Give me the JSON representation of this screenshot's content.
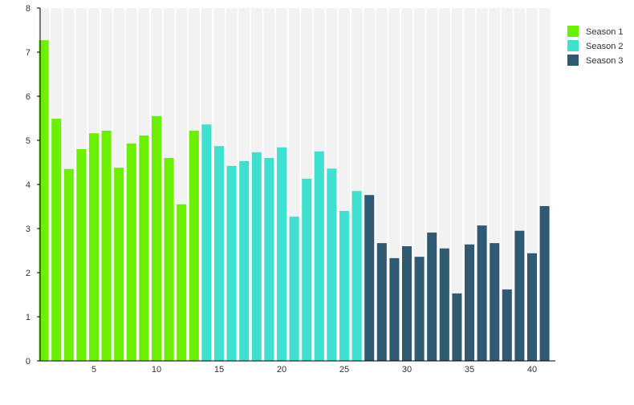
{
  "chart_data": {
    "type": "bar",
    "title": "",
    "xlabel": "",
    "ylabel": "",
    "ylim": [
      0,
      8
    ],
    "yticks": [
      "0",
      "1",
      "2",
      "3",
      "4",
      "5",
      "6",
      "7",
      "8"
    ],
    "xticks": [
      "5",
      "10",
      "15",
      "20",
      "25",
      "30",
      "35",
      "40"
    ],
    "grid": false,
    "legend_position": "top-right",
    "series": [
      {
        "name": "Season 1",
        "color": "#6af000",
        "x": [
          1,
          2,
          3,
          4,
          5,
          6,
          7,
          8,
          9,
          10,
          11,
          12,
          13
        ],
        "values": [
          7.27,
          5.49,
          4.35,
          4.8,
          5.16,
          5.22,
          4.38,
          4.93,
          5.11,
          5.55,
          4.6,
          3.55,
          5.22
        ]
      },
      {
        "name": "Season 2",
        "color": "#40e0d0",
        "x": [
          14,
          15,
          16,
          17,
          18,
          19,
          20,
          21,
          22,
          23,
          24,
          25,
          26
        ],
        "values": [
          5.36,
          4.87,
          4.42,
          4.53,
          4.73,
          4.6,
          4.84,
          3.27,
          4.13,
          4.75,
          4.36,
          3.4,
          3.85
        ]
      },
      {
        "name": "Season 3",
        "color": "#2f5a72",
        "x": [
          27,
          28,
          29,
          30,
          31,
          32,
          33,
          34,
          35,
          36,
          37,
          38,
          39,
          40,
          41
        ],
        "values": [
          3.76,
          2.67,
          2.33,
          2.6,
          2.36,
          2.91,
          2.55,
          1.53,
          2.64,
          3.07,
          2.67,
          1.62,
          2.95,
          2.44,
          3.51
        ]
      }
    ]
  }
}
